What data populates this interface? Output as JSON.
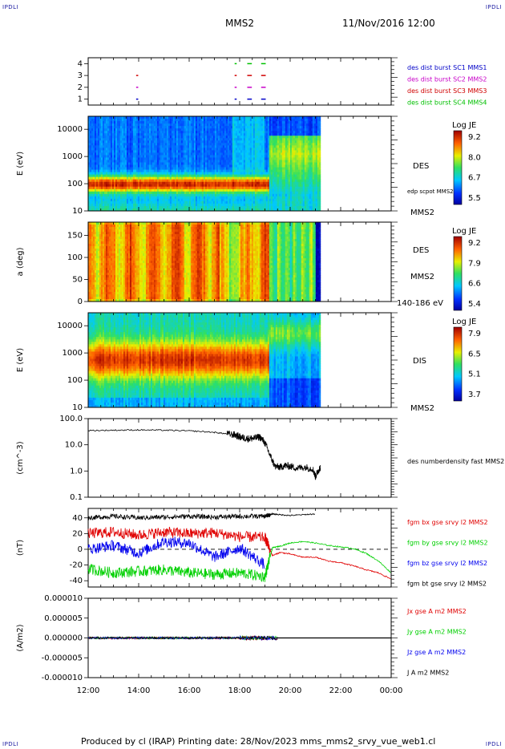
{
  "header": {
    "corner_tl": "IPDLI",
    "corner_tr": "IPDLI",
    "corner_bl": "IPDLI",
    "corner_br": "IPDLI",
    "spacecraft": "MMS2",
    "date": "11/Nov/2016 12:00"
  },
  "footer": {
    "text": "Produced by cl (IRAP)   Printing date: 28/Nov/2023   mms_mms2_srvy_vue_web1.cl"
  },
  "colors": {
    "mms1": "#0000c8",
    "mms2": "#c800c8",
    "mms3": "#d00000",
    "mms4": "#00c000",
    "bx": "#e00000",
    "by": "#00d000",
    "bz": "#0000ee",
    "bt": "#000000"
  },
  "chart_data": [
    {
      "type": "scatter",
      "panel": "burst-intervals",
      "yticks": [
        "1",
        "2",
        "3",
        "4"
      ],
      "ylim": [
        0.5,
        4.5
      ],
      "legend": [
        {
          "label": "des dist burst SC1 MMS1",
          "color": "#0000c8",
          "sc": 1
        },
        {
          "label": "des dist burst SC2 MMS2",
          "color": "#c800c8",
          "sc": 2
        },
        {
          "label": "des dist burst SC3 MMS3",
          "color": "#d00000",
          "sc": 3
        },
        {
          "label": "des dist burst SC4 MMS4",
          "color": "#00c000",
          "sc": 4
        }
      ],
      "intervals_hours": [
        {
          "sc": 1,
          "segments": [
            [
              13.9,
              13.95
            ],
            [
              17.8,
              17.85
            ],
            [
              18.3,
              18.45
            ],
            [
              18.85,
              19.0
            ]
          ]
        },
        {
          "sc": 2,
          "segments": [
            [
              13.9,
              13.95
            ],
            [
              17.8,
              17.85
            ],
            [
              18.3,
              18.45
            ],
            [
              18.85,
              19.0
            ]
          ]
        },
        {
          "sc": 3,
          "segments": [
            [
              13.9,
              13.95
            ],
            [
              17.8,
              17.85
            ],
            [
              18.3,
              18.45
            ],
            [
              18.85,
              19.0
            ]
          ]
        },
        {
          "sc": 4,
          "segments": [
            [
              17.8,
              17.85
            ],
            [
              18.3,
              18.45
            ],
            [
              18.85,
              19.0
            ]
          ]
        }
      ]
    },
    {
      "type": "heatmap",
      "panel": "des-energy",
      "ylabel": "E (eV)",
      "yscale": "log",
      "yticks": [
        "10",
        "100",
        "1000",
        "10000"
      ],
      "ylim": [
        10,
        30000
      ],
      "label": "DES",
      "extra_label": "edp scpot MMS2",
      "sc_label": "MMS2",
      "colorbar": {
        "title": "Log JE",
        "ticks": [
          "9.2",
          "8.0",
          "6.7",
          "5.5"
        ],
        "range": [
          5.5,
          9.6
        ]
      },
      "data_end_hour": 21.2
    },
    {
      "type": "heatmap",
      "panel": "des-pitch",
      "ylabel": "a (deg)",
      "yticks": [
        "0",
        "50",
        "100",
        "150"
      ],
      "ylim": [
        0,
        180
      ],
      "label": "DES",
      "sc_label": "MMS2",
      "energy_label": "140-186 eV",
      "colorbar": {
        "title": "Log JE",
        "ticks": [
          "9.2",
          "7.9",
          "6.6",
          "5.4"
        ],
        "range": [
          5.4,
          9.6
        ]
      },
      "data_end_hour": 21.2
    },
    {
      "type": "heatmap",
      "panel": "dis-energy",
      "ylabel": "E (eV)",
      "yscale": "log",
      "yticks": [
        "10",
        "100",
        "1000",
        "10000"
      ],
      "ylim": [
        10,
        30000
      ],
      "label": "DIS",
      "sc_label": "MMS2",
      "colorbar": {
        "title": "Log JE",
        "ticks": [
          "7.9",
          "6.5",
          "5.1",
          "3.7"
        ],
        "range": [
          3.7,
          8.3
        ]
      },
      "data_end_hour": 21.2
    },
    {
      "type": "line",
      "panel": "density",
      "ylabel": "(cm^-3)",
      "yscale": "log",
      "yticks": [
        "0.1",
        "1.0",
        "10.0",
        "100.0"
      ],
      "ylim": [
        0.1,
        100
      ],
      "series": [
        {
          "name": "des numberdensity fast MMS2",
          "color": "#000000",
          "x": [
            12.0,
            13.0,
            14.0,
            15.0,
            16.0,
            17.0,
            17.5,
            17.8,
            18.0,
            18.2,
            18.4,
            18.6,
            18.8,
            19.0,
            19.2,
            19.4,
            19.6,
            19.8,
            20.0,
            20.3,
            20.6,
            20.9,
            21.0,
            21.1,
            21.2
          ],
          "y": [
            35,
            36,
            37,
            36,
            34,
            30,
            26,
            24,
            20,
            18,
            17,
            18,
            20,
            12,
            4,
            1.5,
            1.4,
            1.6,
            1.5,
            1.3,
            1.4,
            1.2,
            0.6,
            1.0,
            1.4
          ]
        }
      ]
    },
    {
      "type": "line",
      "panel": "magnetic-field",
      "ylabel": "(nT)",
      "yticks": [
        "-40",
        "-20",
        "0",
        "20",
        "40"
      ],
      "ylim": [
        -48,
        52
      ],
      "series": [
        {
          "name": "fgm bx gse srvy l2 MMS2",
          "color": "#e00000",
          "x": [
            12,
            13,
            14,
            15,
            16,
            17,
            18,
            19,
            19.3,
            19.6,
            20,
            20.5,
            21,
            21.5,
            22,
            22.5,
            23,
            23.5,
            24
          ],
          "y": [
            20,
            22,
            18,
            22,
            20,
            21,
            16,
            15,
            -8,
            -4,
            -6,
            -10,
            -10,
            -15,
            -17,
            -21,
            -26,
            -30,
            -38
          ]
        },
        {
          "name": "fgm by gse srvy l2 MMS2",
          "color": "#00d000",
          "x": [
            12,
            13,
            14,
            15,
            16,
            17,
            18,
            19,
            19.3,
            19.6,
            20,
            20.5,
            21,
            21.5,
            22,
            22.5,
            23,
            23.5,
            24
          ],
          "y": [
            -25,
            -30,
            -28,
            -26,
            -30,
            -32,
            -30,
            -35,
            2,
            4,
            8,
            10,
            8,
            5,
            3,
            1,
            -5,
            -15,
            -30
          ]
        },
        {
          "name": "fgm bz gse srvy l2 MMS2",
          "color": "#0000ee",
          "x": [
            12,
            13,
            14,
            15,
            16,
            17,
            18,
            19
          ],
          "y": [
            0,
            5,
            -5,
            10,
            8,
            -10,
            2,
            -20
          ]
        },
        {
          "name": "fgm bt gse srvy l2 MMS2",
          "color": "#000000",
          "x": [
            12,
            13,
            14,
            15,
            16,
            17,
            18,
            19,
            19.3,
            19.6,
            20,
            20.5,
            21
          ],
          "y": [
            40,
            42,
            40,
            41,
            42,
            41,
            42,
            42,
            45,
            44,
            43,
            44,
            45
          ]
        }
      ],
      "reference_line": 0
    },
    {
      "type": "line",
      "panel": "current-density",
      "ylabel": "(A/m2)",
      "yticks": [
        "-0.000010",
        "-0.000005",
        "0.000000",
        "0.000005",
        "0.000010"
      ],
      "ylim": [
        -1e-05,
        1e-05
      ],
      "series": [
        {
          "name": "Jx gse A m2 MMS2",
          "color": "#e00000"
        },
        {
          "name": "Jy gse A m2 MMS2",
          "color": "#00d000"
        },
        {
          "name": "Jz gse A m2 MMS2",
          "color": "#0000ee"
        },
        {
          "name": "J A m2 MMS2",
          "color": "#000000"
        }
      ],
      "data_end_hour": 19.5
    }
  ],
  "xaxis": {
    "ticks": [
      "12:00",
      "14:00",
      "16:00",
      "18:00",
      "20:00",
      "22:00",
      "00:00"
    ],
    "range_hours": [
      12,
      24
    ]
  }
}
